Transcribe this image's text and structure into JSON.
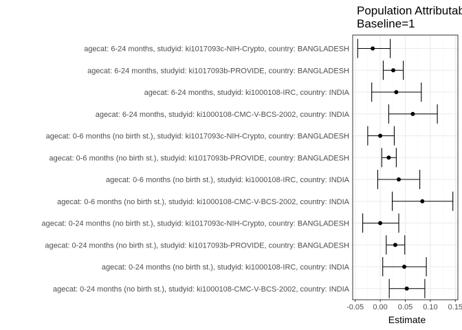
{
  "chart_data": {
    "type": "forest",
    "title": [
      "Population Attributable",
      "Baseline=1"
    ],
    "xlabel": "Estimate",
    "ylabel": "",
    "xlim": [
      -0.055,
      0.155
    ],
    "xticks": [
      -0.05,
      0.0,
      0.05,
      0.1,
      0.15
    ],
    "xtick_labels": [
      "-0.05",
      "0.00",
      "0.05",
      "0.10",
      "0.15"
    ],
    "grid": true,
    "rows": [
      {
        "label": "agecat: 6-24 months, studyid: ki1017093c-NIH-Crypto, country: BANGLADESH",
        "est": -0.015,
        "lo": -0.045,
        "hi": 0.02
      },
      {
        "label": "agecat: 6-24 months, studyid: ki1017093b-PROVIDE, country: BANGLADESH",
        "est": 0.026,
        "lo": 0.006,
        "hi": 0.046
      },
      {
        "label": "agecat: 6-24 months, studyid: ki1000108-IRC, country: INDIA",
        "est": 0.032,
        "lo": -0.017,
        "hi": 0.082
      },
      {
        "label": "agecat: 6-24 months, studyid: ki1000108-CMC-V-BCS-2002, country: INDIA",
        "est": 0.065,
        "lo": 0.017,
        "hi": 0.114
      },
      {
        "label": "agecat: 0-6 months (no birth st.), studyid: ki1017093c-NIH-Crypto, country: BANGLADESH",
        "est": 0.0,
        "lo": -0.025,
        "hi": 0.028
      },
      {
        "label": "agecat: 0-6 months (no birth st.), studyid: ki1017093b-PROVIDE, country: BANGLADESH",
        "est": 0.017,
        "lo": 0.003,
        "hi": 0.032
      },
      {
        "label": "agecat: 0-6 months (no birth st.), studyid: ki1000108-IRC, country: INDIA",
        "est": 0.037,
        "lo": -0.005,
        "hi": 0.079
      },
      {
        "label": "agecat: 0-6 months (no birth st.), studyid: ki1000108-CMC-V-BCS-2002, country: INDIA",
        "est": 0.084,
        "lo": 0.024,
        "hi": 0.145
      },
      {
        "label": "agecat: 0-24 months (no birth st.), studyid: ki1017093c-NIH-Crypto, country: BANGLADESH",
        "est": 0.0,
        "lo": -0.035,
        "hi": 0.037
      },
      {
        "label": "agecat: 0-24 months (no birth st.), studyid: ki1017093b-PROVIDE, country: BANGLADESH",
        "est": 0.03,
        "lo": 0.012,
        "hi": 0.049
      },
      {
        "label": "agecat: 0-24 months (no birth st.), studyid: ki1000108-IRC, country: INDIA",
        "est": 0.048,
        "lo": 0.005,
        "hi": 0.092
      },
      {
        "label": "agecat: 0-24 months (no birth st.), studyid: ki1000108-CMC-V-BCS-2002, country: INDIA",
        "est": 0.053,
        "lo": 0.018,
        "hi": 0.089
      }
    ],
    "colors": {
      "point": "#000000",
      "grid_major": "#ebebeb",
      "grid_minor": "#f5f5f5",
      "panel_border": "#333333"
    }
  }
}
